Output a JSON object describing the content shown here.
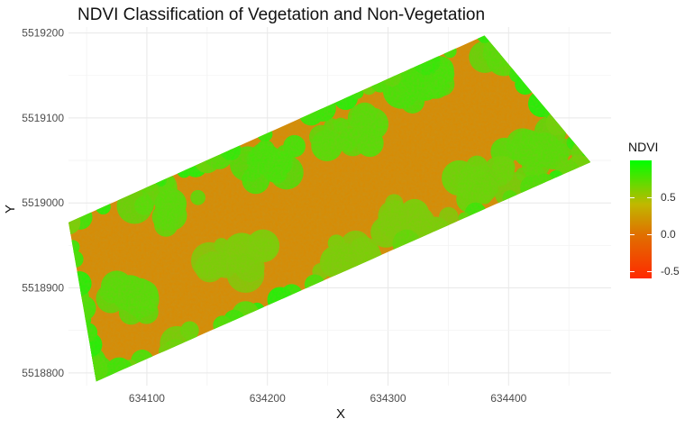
{
  "chart_data": {
    "type": "heatmap",
    "title": "NDVI Classification of Vegetation and Non-Vegetation",
    "xlabel": "X",
    "ylabel": "Y",
    "xlim": [
      634035,
      634485
    ],
    "ylim": [
      5518785,
      5519207
    ],
    "x_ticks": [
      634100,
      634200,
      634300,
      634400
    ],
    "y_ticks": [
      5518800,
      5518900,
      5519000,
      5519100,
      5519200
    ],
    "x_tick_labels": [
      "634100",
      "634200",
      "634300",
      "634400"
    ],
    "y_tick_labels": [
      "5518800",
      "5518900",
      "5519000",
      "5519100",
      "5519200"
    ],
    "grid": true,
    "footprint": [
      [
        634035,
        5518977
      ],
      [
        634380,
        5519197
      ],
      [
        634468,
        5519048
      ],
      [
        634058,
        5518790
      ]
    ],
    "vegetation_patches": [
      {
        "x": 634085,
        "y": 5518895,
        "ndvi": 0.8
      },
      {
        "x": 634150,
        "y": 5518830,
        "ndvi": 0.75
      },
      {
        "x": 634060,
        "y": 5518800,
        "ndvi": 0.85
      },
      {
        "x": 634200,
        "y": 5519050,
        "ndvi": 0.85
      },
      {
        "x": 634270,
        "y": 5519085,
        "ndvi": 0.8
      },
      {
        "x": 634330,
        "y": 5519140,
        "ndvi": 0.85
      },
      {
        "x": 634400,
        "y": 5519180,
        "ndvi": 0.8
      },
      {
        "x": 634420,
        "y": 5519060,
        "ndvi": 0.8
      },
      {
        "x": 634380,
        "y": 5519020,
        "ndvi": 0.75
      },
      {
        "x": 634320,
        "y": 5518980,
        "ndvi": 0.7
      },
      {
        "x": 634270,
        "y": 5518930,
        "ndvi": 0.7
      },
      {
        "x": 634120,
        "y": 5519000,
        "ndvi": 0.8
      },
      {
        "x": 634180,
        "y": 5518930,
        "ndvi": 0.7
      }
    ],
    "colorbar": {
      "title": "NDVI",
      "range": [
        -0.6,
        1.0
      ],
      "ticks": [
        -0.5,
        0.0,
        0.5
      ],
      "tick_labels": [
        "-0.5",
        "0.0",
        "0.5"
      ],
      "colors": {
        "high": "#00ff00",
        "mid": "#c0b800",
        "low_mid": "#e07000",
        "low": "#ff2a00"
      }
    }
  }
}
